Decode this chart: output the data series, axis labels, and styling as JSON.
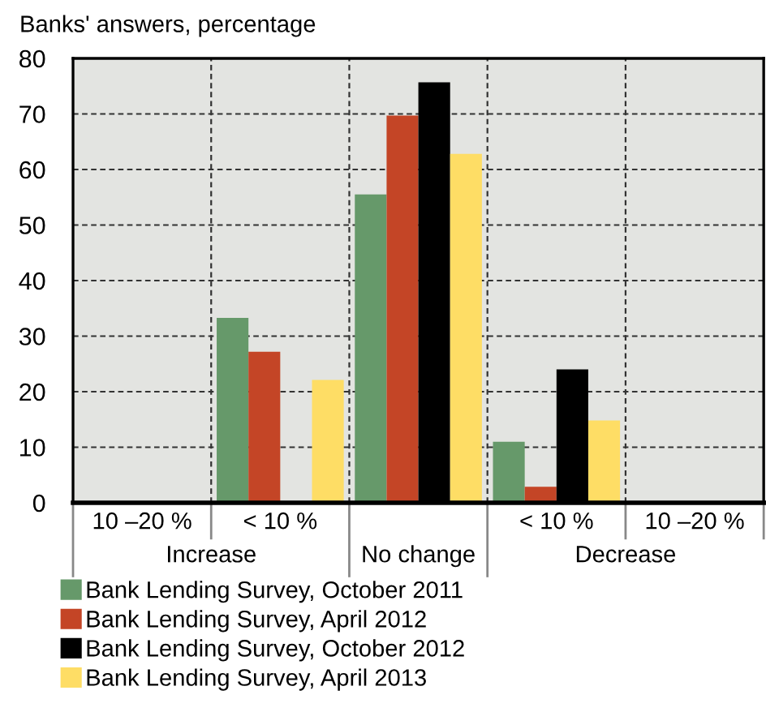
{
  "chart_data": {
    "type": "bar",
    "ylabel": "Banks' answers, percentage",
    "categories": [
      "10 –20 %",
      "< 10 %",
      "No change",
      "< 10 %",
      "10 –20 %"
    ],
    "series": [
      {
        "name": "Bank Lending Survey, October 2011",
        "color": "#66996a",
        "values": [
          0,
          33.3,
          55.5,
          11.0,
          0
        ]
      },
      {
        "name": "Bank Lending Survey, April 2012",
        "color": "#c44526",
        "values": [
          0,
          27.2,
          69.7,
          2.9,
          0
        ]
      },
      {
        "name": "Bank Lending Survey, October 2012",
        "color": "#000000",
        "values": [
          0,
          0,
          75.7,
          24.0,
          0
        ]
      },
      {
        "name": "Bank Lending Survey, April 2013",
        "color": "#fedd65",
        "values": [
          0,
          22.1,
          62.8,
          14.8,
          0
        ]
      }
    ],
    "annotations": [
      "Increase",
      "Decrease"
    ],
    "ylim": [
      0,
      80
    ],
    "yticks": [
      0,
      10,
      20,
      30,
      40,
      50,
      60,
      70,
      80
    ],
    "grid": true,
    "legend": "bottom"
  }
}
